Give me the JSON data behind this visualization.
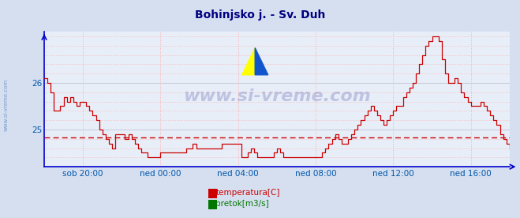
{
  "title": "Bohinjsko j. - Sv. Duh",
  "title_color": "#000080",
  "title_fontsize": 10,
  "bg_color": "#d5dff0",
  "plot_bg_color": "#e8eef8",
  "x_labels": [
    "sob 20:00",
    "ned 00:00",
    "ned 04:00",
    "ned 08:00",
    "ned 12:00",
    "ned 16:00"
  ],
  "x_ticks_norm": [
    0.0833,
    0.25,
    0.4167,
    0.5833,
    0.75,
    0.9167
  ],
  "yticks": [
    25,
    26
  ],
  "ylim_min": 24.2,
  "ylim_max": 27.1,
  "y_avg_line": 24.83,
  "avg_line_color": "#cc0000",
  "grid_v_color": "#ffaaaa",
  "grid_h_color": "#ffaaaa",
  "solid_h_color": "#ccccdd",
  "line_color": "#cc0000",
  "axis_color": "#0000cc",
  "tick_label_color": "#0055aa",
  "watermark_text": "www.si-vreme.com",
  "watermark_color": "#000080",
  "watermark_alpha": 0.18,
  "legend_temperatura_color": "#cc0000",
  "legend_pretok_color": "#007700",
  "temperature_data": [
    26.1,
    26.0,
    25.8,
    25.4,
    25.4,
    25.5,
    25.7,
    25.6,
    25.7,
    25.6,
    25.5,
    25.6,
    25.6,
    25.5,
    25.4,
    25.3,
    25.2,
    25.0,
    24.9,
    24.8,
    24.7,
    24.6,
    24.9,
    24.9,
    24.9,
    24.8,
    24.9,
    24.8,
    24.7,
    24.6,
    24.5,
    24.5,
    24.4,
    24.4,
    24.4,
    24.4,
    24.5,
    24.5,
    24.5,
    24.5,
    24.5,
    24.5,
    24.5,
    24.5,
    24.6,
    24.6,
    24.7,
    24.6,
    24.6,
    24.6,
    24.6,
    24.6,
    24.6,
    24.6,
    24.6,
    24.7,
    24.7,
    24.7,
    24.7,
    24.7,
    24.7,
    24.4,
    24.4,
    24.5,
    24.6,
    24.5,
    24.4,
    24.4,
    24.4,
    24.4,
    24.4,
    24.5,
    24.6,
    24.5,
    24.4,
    24.4,
    24.4,
    24.4,
    24.4,
    24.4,
    24.4,
    24.4,
    24.4,
    24.4,
    24.4,
    24.4,
    24.5,
    24.6,
    24.7,
    24.8,
    24.9,
    24.8,
    24.7,
    24.7,
    24.8,
    24.9,
    25.0,
    25.1,
    25.2,
    25.3,
    25.4,
    25.5,
    25.4,
    25.3,
    25.2,
    25.1,
    25.2,
    25.3,
    25.4,
    25.5,
    25.5,
    25.7,
    25.8,
    25.9,
    26.0,
    26.2,
    26.4,
    26.6,
    26.8,
    26.9,
    27.0,
    27.0,
    26.9,
    26.5,
    26.2,
    26.0,
    26.0,
    26.1,
    26.0,
    25.8,
    25.7,
    25.6,
    25.5,
    25.5,
    25.5,
    25.6,
    25.5,
    25.4,
    25.3,
    25.2,
    25.1,
    24.9,
    24.8,
    24.7,
    24.6
  ]
}
